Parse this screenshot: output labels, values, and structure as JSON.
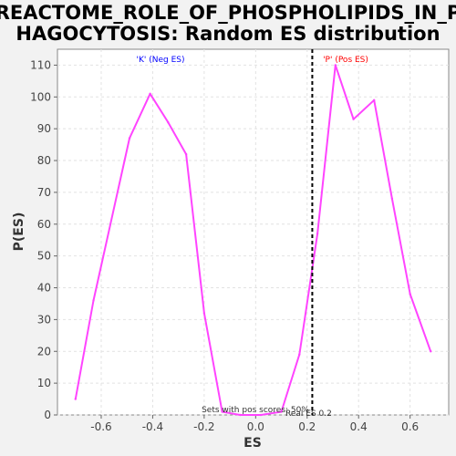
{
  "chart_data": {
    "type": "line",
    "title_lines": [
      "REACTOME_ROLE_OF_PHOSPHOLIPIDS_IN_P",
      "HAGOCYTOSIS: Random ES distribution"
    ],
    "xlabel": "ES",
    "ylabel": "P(ES)",
    "xlim": [
      -0.77,
      0.75
    ],
    "ylim": [
      0,
      115
    ],
    "x_ticks": [
      -0.6,
      -0.4,
      -0.2,
      0.0,
      0.2,
      0.4,
      0.6
    ],
    "x_tick_labels": [
      "-0.6",
      "-0.4",
      "-0.2",
      "0.0",
      "0.2",
      "0.4",
      "0.6"
    ],
    "y_ticks": [
      0,
      10,
      20,
      30,
      40,
      50,
      60,
      70,
      80,
      90,
      100,
      110
    ],
    "y_tick_labels": [
      "0",
      "10",
      "20",
      "30",
      "40",
      "50",
      "60",
      "70",
      "80",
      "90",
      "100",
      "110"
    ],
    "grid": true,
    "series": [
      {
        "color": "#ff44ff",
        "x": [
          -0.7,
          -0.63,
          -0.49,
          -0.41,
          -0.34,
          -0.27,
          -0.2,
          -0.13,
          -0.06,
          0.02,
          0.1,
          0.17,
          0.24,
          0.31,
          0.38,
          0.46,
          0.53,
          0.6,
          0.68
        ],
        "y": [
          5,
          36,
          87,
          101,
          92,
          82,
          32,
          1,
          0,
          0,
          1,
          19,
          57,
          110,
          93,
          99,
          68,
          38,
          20
        ]
      }
    ],
    "annotations": {
      "neg_label": "'K' (Neg ES)",
      "pos_label": "'P' (Pos ES)",
      "neg_color": "#0000ff",
      "pos_color": "#ff0000",
      "sets_text": "Sets with pos scores: 50%",
      "real_es_text": "Real ES 0.2",
      "real_es_value": 0.22
    }
  }
}
